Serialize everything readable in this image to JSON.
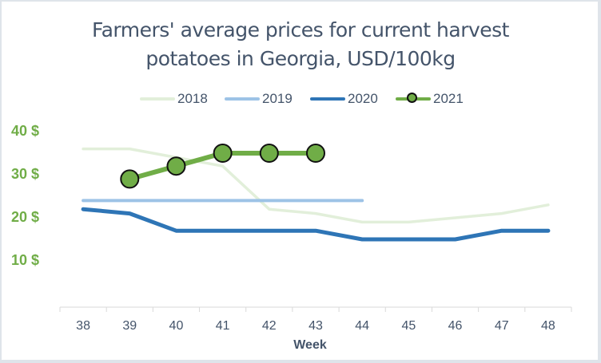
{
  "chart_data": {
    "type": "line",
    "title": "Farmers' average prices for current harvest potatoes in Georgia, USD/100kg",
    "title_lines": [
      "Farmers' average prices for current harvest",
      "potatoes in Georgia, USD/100kg"
    ],
    "xlabel": "Week",
    "ylabel": "",
    "x": [
      38,
      39,
      40,
      41,
      42,
      43,
      44,
      45,
      46,
      47,
      48
    ],
    "ylim": [
      0,
      40
    ],
    "yticks": [
      10,
      20,
      30,
      40
    ],
    "ytick_labels": [
      "10 $",
      "20 $",
      "30 $",
      "40 $"
    ],
    "grid": false,
    "legend_position": "top",
    "series": [
      {
        "name": "2018",
        "color": "#e2efda",
        "values": [
          36,
          36,
          34,
          32,
          22,
          21,
          19,
          19,
          20,
          21,
          23
        ]
      },
      {
        "name": "2019",
        "color": "#9dc3e6",
        "values": [
          24,
          24,
          24,
          24,
          24,
          24,
          24,
          null,
          null,
          null,
          null
        ]
      },
      {
        "name": "2020",
        "color": "#2e75b6",
        "values": [
          22,
          21,
          17,
          17,
          17,
          17,
          15,
          15,
          15,
          17,
          17
        ]
      },
      {
        "name": "2021",
        "color": "#70ad47",
        "marker": "circle",
        "values": [
          null,
          29,
          32,
          35,
          35,
          35,
          null,
          null,
          null,
          null,
          null
        ]
      }
    ]
  },
  "title": {
    "line1": "Farmers' average prices for current harvest",
    "line2": "potatoes in Georgia, USD/100kg"
  },
  "legend": {
    "items": [
      {
        "label": "2018"
      },
      {
        "label": "2019"
      },
      {
        "label": "2020"
      },
      {
        "label": "2021"
      }
    ]
  },
  "axes": {
    "y_ticks": [
      "40 $",
      "30 $",
      "20 $",
      "10 $"
    ],
    "x_ticks": [
      "38",
      "39",
      "40",
      "41",
      "42",
      "43",
      "44",
      "45",
      "46",
      "47",
      "48"
    ],
    "x_label": "Week"
  }
}
